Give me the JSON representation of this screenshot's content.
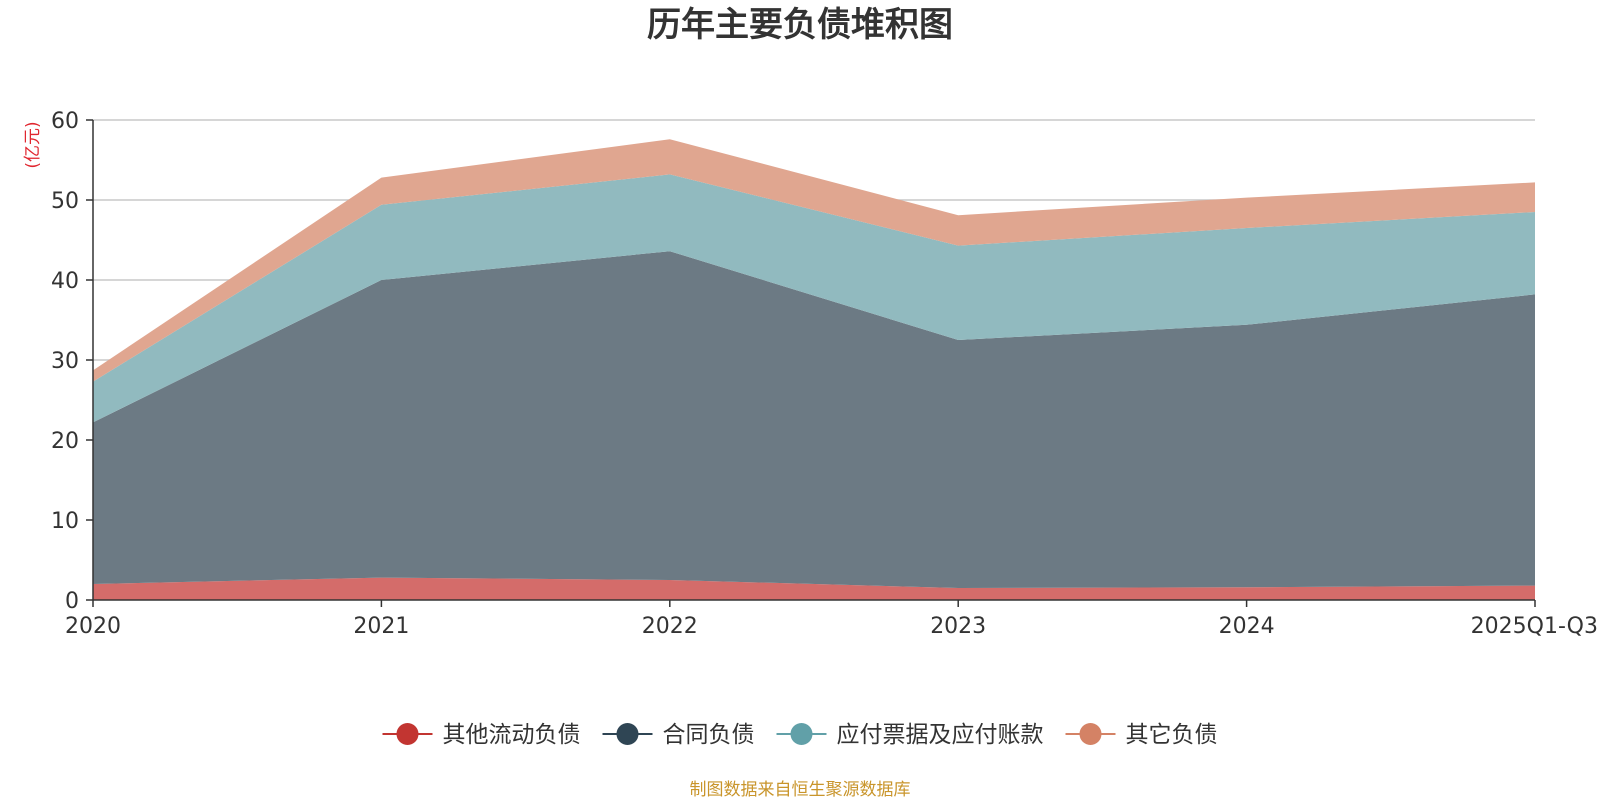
{
  "chart_data": {
    "type": "area",
    "stacked": true,
    "title": "历年主要负债堆积图",
    "ylabel": "(亿元)",
    "categories": [
      "2020",
      "2021",
      "2022",
      "2023",
      "2024",
      "2025Q1-Q3"
    ],
    "ylim": [
      0,
      60
    ],
    "yticks": [
      0,
      10,
      20,
      30,
      40,
      50,
      60
    ],
    "grid": true,
    "legend_position": "bottom",
    "series": [
      {
        "name": "其他流动负债",
        "color": "#c23531",
        "fill": "#d46c6a",
        "values": [
          2.0,
          2.8,
          2.5,
          1.5,
          1.6,
          1.8
        ]
      },
      {
        "name": "合同负债",
        "color": "#2f4554",
        "fill": "#6c7a84",
        "values": [
          20.2,
          37.2,
          41.1,
          31.0,
          32.8,
          36.4
        ]
      },
      {
        "name": "应付票据及应付账款",
        "color": "#61a0a8",
        "fill": "#91babf",
        "values": [
          5.1,
          9.4,
          9.6,
          11.8,
          12.1,
          10.3
        ]
      },
      {
        "name": "其它负债",
        "color": "#d48265",
        "fill": "#e0a690",
        "values": [
          1.4,
          3.4,
          4.4,
          3.8,
          3.8,
          3.7
        ]
      }
    ],
    "source": "制图数据来自恒生聚源数据库"
  }
}
